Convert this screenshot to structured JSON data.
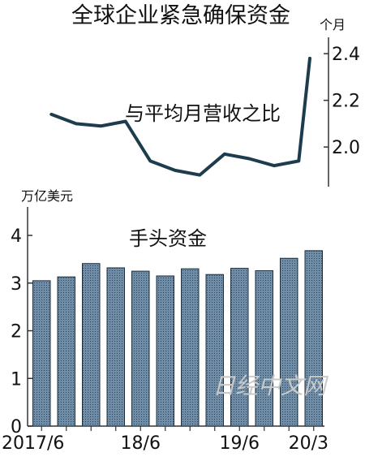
{
  "chart_data": [
    {
      "type": "line",
      "title": "全球企业紧急确保资金",
      "series": [
        {
          "name": "与平均月营收之比",
          "values": [
            2.14,
            2.1,
            2.09,
            2.11,
            1.94,
            1.9,
            1.88,
            1.97,
            1.95,
            1.92,
            1.94,
            2.38
          ]
        }
      ],
      "ylabel": "个月",
      "ylim": [
        1.83,
        2.47
      ],
      "yticks": [
        "2.0",
        "2.2",
        "2.4"
      ],
      "grid": false,
      "line_color": "#1d3d4f"
    },
    {
      "type": "bar",
      "series": [
        {
          "name": "手头资金",
          "values": [
            3.05,
            3.13,
            3.41,
            3.32,
            3.25,
            3.15,
            3.3,
            3.18,
            3.31,
            3.26,
            3.52,
            3.68
          ]
        }
      ],
      "ylabel": "万亿美元",
      "ylim": [
        0,
        4.75
      ],
      "yticks": [
        "0",
        "1",
        "2",
        "3",
        "4"
      ],
      "x_tick_labels": [
        "2017/6",
        "18/6",
        "19/6",
        "20/3"
      ],
      "grid": false,
      "bar_color": "#6f8da6",
      "bar_edge_color": "#1e2e3c"
    }
  ],
  "watermark": "日经中文网"
}
